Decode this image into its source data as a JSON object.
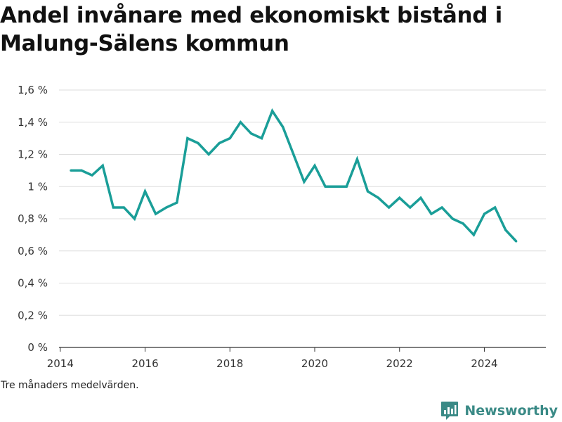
{
  "title": "Andel invånare med ekonomiskt bistånd i Malung-Sälens kommun",
  "note": "Tre månaders medelvärden.",
  "brand": {
    "name": "Newsworthy",
    "color": "#3a8a86",
    "logo_icon": "newsworthy-chart-bubble-icon"
  },
  "colors": {
    "line": "#1a9e98",
    "grid": "#dddddd",
    "axis": "#333333"
  },
  "chart_data": {
    "type": "line",
    "title": "Andel invånare med ekonomiskt bistånd i Malung-Sälens kommun",
    "xlabel": "",
    "ylabel": "",
    "x_ticks": [
      "2014",
      "2016",
      "2018",
      "2020",
      "2022",
      "2024"
    ],
    "y_ticks": [
      "0 %",
      "0,2 %",
      "0,4 %",
      "0,6 %",
      "0,8 %",
      "1 %",
      "1,2 %",
      "1,4 %",
      "1,6 %"
    ],
    "xlim": [
      2013.97,
      2025.45
    ],
    "ylim": [
      0,
      1.6
    ],
    "grid": true,
    "unit": "%",
    "series": [
      {
        "x": [
          "2014-04",
          "2014-07",
          "2014-10",
          "2015-01",
          "2015-04",
          "2015-07",
          "2015-10",
          "2016-01",
          "2016-04",
          "2016-07",
          "2016-10",
          "2017-01",
          "2017-04",
          "2017-07",
          "2017-10",
          "2018-01",
          "2018-04",
          "2018-07",
          "2018-10",
          "2019-01",
          "2019-04",
          "2019-07",
          "2019-10",
          "2020-01",
          "2020-04",
          "2020-07",
          "2020-10",
          "2021-01",
          "2021-04",
          "2021-07",
          "2021-10",
          "2022-01",
          "2022-04",
          "2022-07",
          "2022-10",
          "2023-01",
          "2023-04",
          "2023-07",
          "2023-10",
          "2024-01",
          "2024-04",
          "2024-07",
          "2024-10"
        ],
        "values": [
          1.1,
          1.1,
          1.07,
          1.13,
          0.87,
          0.87,
          0.8,
          0.97,
          0.83,
          0.87,
          0.9,
          1.3,
          1.27,
          1.2,
          1.27,
          1.3,
          1.4,
          1.33,
          1.3,
          1.47,
          1.37,
          1.2,
          1.03,
          1.13,
          1.0,
          1.0,
          1.0,
          1.17,
          0.97,
          0.93,
          0.87,
          0.93,
          0.87,
          0.93,
          0.83,
          0.87,
          0.8,
          0.77,
          0.7,
          0.83,
          0.87,
          0.73,
          0.66
        ]
      }
    ]
  }
}
